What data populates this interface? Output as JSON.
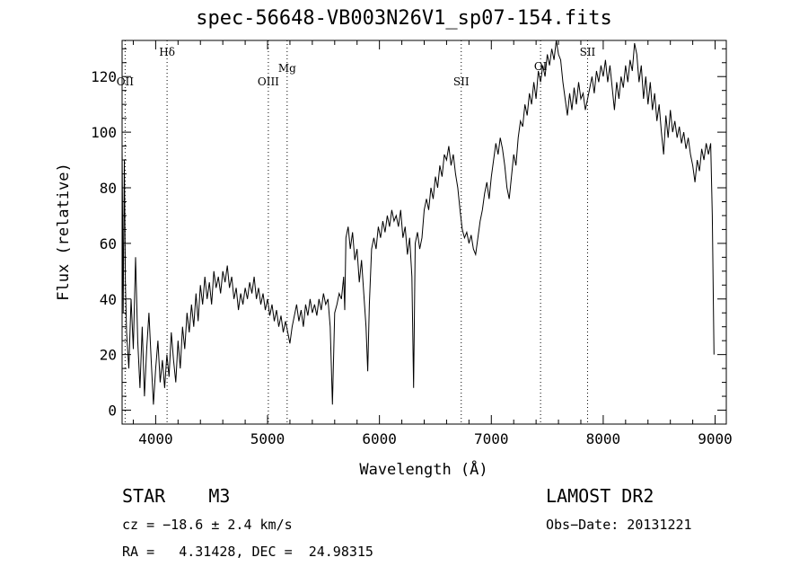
{
  "chart_data": {
    "type": "line",
    "title": "spec-56648-VB003N26V1_sp07-154.fits",
    "xlabel": "Wavelength (Å)",
    "ylabel": "Flux (relative)",
    "xlim": [
      3700,
      9100
    ],
    "ylim": [
      -5,
      133
    ],
    "xticks": [
      4000,
      5000,
      6000,
      7000,
      8000,
      9000
    ],
    "xtick_labels": [
      "4000",
      "5000",
      "6000",
      "7000",
      "8000",
      "9000"
    ],
    "yticks": [
      0,
      20,
      40,
      60,
      80,
      100,
      120
    ],
    "ytick_labels": [
      "0",
      "20",
      "40",
      "60",
      "80",
      "100",
      "120"
    ],
    "grid": false,
    "series": [
      {
        "points": [
          [
            3700,
            95
          ],
          [
            3710,
            35
          ],
          [
            3720,
            90
          ],
          [
            3730,
            45
          ],
          [
            3740,
            28
          ],
          [
            3760,
            15
          ],
          [
            3780,
            40
          ],
          [
            3800,
            22
          ],
          [
            3820,
            55
          ],
          [
            3840,
            25
          ],
          [
            3860,
            8
          ],
          [
            3880,
            30
          ],
          [
            3900,
            5
          ],
          [
            3920,
            22
          ],
          [
            3940,
            35
          ],
          [
            3960,
            18
          ],
          [
            3980,
            2
          ],
          [
            4000,
            15
          ],
          [
            4020,
            25
          ],
          [
            4040,
            10
          ],
          [
            4060,
            18
          ],
          [
            4080,
            8
          ],
          [
            4100,
            20
          ],
          [
            4120,
            12
          ],
          [
            4140,
            28
          ],
          [
            4160,
            18
          ],
          [
            4180,
            10
          ],
          [
            4200,
            25
          ],
          [
            4220,
            15
          ],
          [
            4240,
            30
          ],
          [
            4260,
            22
          ],
          [
            4280,
            35
          ],
          [
            4300,
            28
          ],
          [
            4320,
            38
          ],
          [
            4340,
            30
          ],
          [
            4360,
            42
          ],
          [
            4380,
            32
          ],
          [
            4400,
            45
          ],
          [
            4420,
            38
          ],
          [
            4440,
            48
          ],
          [
            4460,
            40
          ],
          [
            4480,
            46
          ],
          [
            4500,
            38
          ],
          [
            4520,
            50
          ],
          [
            4540,
            44
          ],
          [
            4560,
            48
          ],
          [
            4580,
            42
          ],
          [
            4600,
            50
          ],
          [
            4620,
            46
          ],
          [
            4640,
            52
          ],
          [
            4660,
            44
          ],
          [
            4680,
            48
          ],
          [
            4700,
            40
          ],
          [
            4720,
            44
          ],
          [
            4740,
            36
          ],
          [
            4760,
            42
          ],
          [
            4780,
            38
          ],
          [
            4800,
            44
          ],
          [
            4820,
            40
          ],
          [
            4840,
            46
          ],
          [
            4860,
            42
          ],
          [
            4880,
            48
          ],
          [
            4900,
            40
          ],
          [
            4920,
            44
          ],
          [
            4940,
            38
          ],
          [
            4960,
            42
          ],
          [
            4980,
            36
          ],
          [
            5000,
            40
          ],
          [
            5020,
            34
          ],
          [
            5040,
            38
          ],
          [
            5060,
            32
          ],
          [
            5080,
            36
          ],
          [
            5100,
            30
          ],
          [
            5120,
            34
          ],
          [
            5140,
            28
          ],
          [
            5160,
            32
          ],
          [
            5180,
            28
          ],
          [
            5200,
            24
          ],
          [
            5220,
            30
          ],
          [
            5240,
            34
          ],
          [
            5260,
            38
          ],
          [
            5280,
            32
          ],
          [
            5300,
            36
          ],
          [
            5320,
            30
          ],
          [
            5340,
            38
          ],
          [
            5360,
            34
          ],
          [
            5380,
            40
          ],
          [
            5400,
            35
          ],
          [
            5420,
            38
          ],
          [
            5440,
            34
          ],
          [
            5460,
            40
          ],
          [
            5480,
            36
          ],
          [
            5500,
            42
          ],
          [
            5520,
            38
          ],
          [
            5540,
            40
          ],
          [
            5560,
            30
          ],
          [
            5580,
            2
          ],
          [
            5600,
            35
          ],
          [
            5620,
            38
          ],
          [
            5640,
            42
          ],
          [
            5660,
            40
          ],
          [
            5680,
            48
          ],
          [
            5690,
            36
          ],
          [
            5700,
            62
          ],
          [
            5720,
            66
          ],
          [
            5740,
            58
          ],
          [
            5760,
            64
          ],
          [
            5780,
            54
          ],
          [
            5800,
            58
          ],
          [
            5820,
            46
          ],
          [
            5840,
            54
          ],
          [
            5860,
            42
          ],
          [
            5880,
            30
          ],
          [
            5895,
            14
          ],
          [
            5910,
            38
          ],
          [
            5930,
            58
          ],
          [
            5950,
            62
          ],
          [
            5970,
            58
          ],
          [
            5990,
            66
          ],
          [
            6010,
            62
          ],
          [
            6030,
            68
          ],
          [
            6050,
            64
          ],
          [
            6070,
            70
          ],
          [
            6090,
            66
          ],
          [
            6110,
            72
          ],
          [
            6130,
            68
          ],
          [
            6150,
            70
          ],
          [
            6170,
            66
          ],
          [
            6190,
            72
          ],
          [
            6210,
            62
          ],
          [
            6230,
            66
          ],
          [
            6250,
            56
          ],
          [
            6270,
            62
          ],
          [
            6290,
            48
          ],
          [
            6305,
            8
          ],
          [
            6320,
            60
          ],
          [
            6340,
            64
          ],
          [
            6360,
            58
          ],
          [
            6380,
            62
          ],
          [
            6400,
            72
          ],
          [
            6420,
            76
          ],
          [
            6440,
            72
          ],
          [
            6460,
            80
          ],
          [
            6480,
            76
          ],
          [
            6500,
            84
          ],
          [
            6520,
            80
          ],
          [
            6540,
            88
          ],
          [
            6560,
            84
          ],
          [
            6580,
            92
          ],
          [
            6600,
            90
          ],
          [
            6620,
            95
          ],
          [
            6640,
            88
          ],
          [
            6660,
            92
          ],
          [
            6680,
            85
          ],
          [
            6700,
            80
          ],
          [
            6720,
            72
          ],
          [
            6740,
            65
          ],
          [
            6760,
            62
          ],
          [
            6780,
            64
          ],
          [
            6800,
            60
          ],
          [
            6820,
            63
          ],
          [
            6840,
            58
          ],
          [
            6860,
            56
          ],
          [
            6880,
            62
          ],
          [
            6900,
            68
          ],
          [
            6920,
            72
          ],
          [
            6940,
            78
          ],
          [
            6960,
            82
          ],
          [
            6980,
            76
          ],
          [
            7000,
            84
          ],
          [
            7020,
            90
          ],
          [
            7040,
            96
          ],
          [
            7060,
            92
          ],
          [
            7080,
            98
          ],
          [
            7100,
            94
          ],
          [
            7120,
            88
          ],
          [
            7140,
            80
          ],
          [
            7160,
            76
          ],
          [
            7180,
            84
          ],
          [
            7200,
            92
          ],
          [
            7220,
            88
          ],
          [
            7240,
            98
          ],
          [
            7260,
            104
          ],
          [
            7280,
            102
          ],
          [
            7300,
            110
          ],
          [
            7320,
            106
          ],
          [
            7340,
            114
          ],
          [
            7360,
            110
          ],
          [
            7380,
            118
          ],
          [
            7400,
            112
          ],
          [
            7420,
            122
          ],
          [
            7440,
            118
          ],
          [
            7460,
            124
          ],
          [
            7480,
            120
          ],
          [
            7500,
            128
          ],
          [
            7520,
            124
          ],
          [
            7540,
            130
          ],
          [
            7560,
            126
          ],
          [
            7580,
            134
          ],
          [
            7600,
            128
          ],
          [
            7620,
            126
          ],
          [
            7640,
            118
          ],
          [
            7660,
            112
          ],
          [
            7680,
            106
          ],
          [
            7700,
            114
          ],
          [
            7720,
            108
          ],
          [
            7740,
            116
          ],
          [
            7760,
            110
          ],
          [
            7780,
            118
          ],
          [
            7800,
            112
          ],
          [
            7820,
            114
          ],
          [
            7840,
            108
          ],
          [
            7860,
            112
          ],
          [
            7880,
            116
          ],
          [
            7900,
            120
          ],
          [
            7920,
            114
          ],
          [
            7940,
            122
          ],
          [
            7960,
            118
          ],
          [
            7980,
            124
          ],
          [
            8000,
            120
          ],
          [
            8020,
            126
          ],
          [
            8040,
            118
          ],
          [
            8060,
            124
          ],
          [
            8080,
            116
          ],
          [
            8100,
            108
          ],
          [
            8120,
            118
          ],
          [
            8140,
            112
          ],
          [
            8160,
            120
          ],
          [
            8180,
            116
          ],
          [
            8200,
            124
          ],
          [
            8220,
            118
          ],
          [
            8240,
            126
          ],
          [
            8260,
            122
          ],
          [
            8280,
            132
          ],
          [
            8300,
            128
          ],
          [
            8320,
            118
          ],
          [
            8340,
            124
          ],
          [
            8360,
            112
          ],
          [
            8380,
            120
          ],
          [
            8400,
            110
          ],
          [
            8420,
            118
          ],
          [
            8440,
            108
          ],
          [
            8460,
            114
          ],
          [
            8480,
            104
          ],
          [
            8500,
            110
          ],
          [
            8520,
            100
          ],
          [
            8540,
            92
          ],
          [
            8560,
            106
          ],
          [
            8580,
            98
          ],
          [
            8600,
            108
          ],
          [
            8620,
            100
          ],
          [
            8640,
            104
          ],
          [
            8660,
            98
          ],
          [
            8680,
            102
          ],
          [
            8700,
            96
          ],
          [
            8720,
            100
          ],
          [
            8740,
            94
          ],
          [
            8760,
            98
          ],
          [
            8780,
            92
          ],
          [
            8800,
            88
          ],
          [
            8820,
            82
          ],
          [
            8840,
            90
          ],
          [
            8860,
            86
          ],
          [
            8880,
            94
          ],
          [
            8900,
            90
          ],
          [
            8920,
            96
          ],
          [
            8940,
            92
          ],
          [
            8960,
            96
          ],
          [
            8975,
            70
          ],
          [
            8990,
            20
          ]
        ]
      }
    ],
    "line_markers": [
      {
        "label": "OII",
        "x": 3727
      },
      {
        "label": "Hδ",
        "x": 4102
      },
      {
        "label": "OIII",
        "x": 5007
      },
      {
        "label": "Mg",
        "x": 5175
      },
      {
        "label": "SII",
        "x": 6731
      },
      {
        "label": "OI",
        "x": 7440
      },
      {
        "label": "SII",
        "x": 7860
      }
    ]
  },
  "footer": {
    "object": "STAR    M3",
    "survey": "LAMOST DR2",
    "redshift": "cz = −18.6 ± 2.4 km/s",
    "obs_date": "Obs−Date: 20131221",
    "coords": "RA =   4.31428, DEC =  24.98315"
  }
}
